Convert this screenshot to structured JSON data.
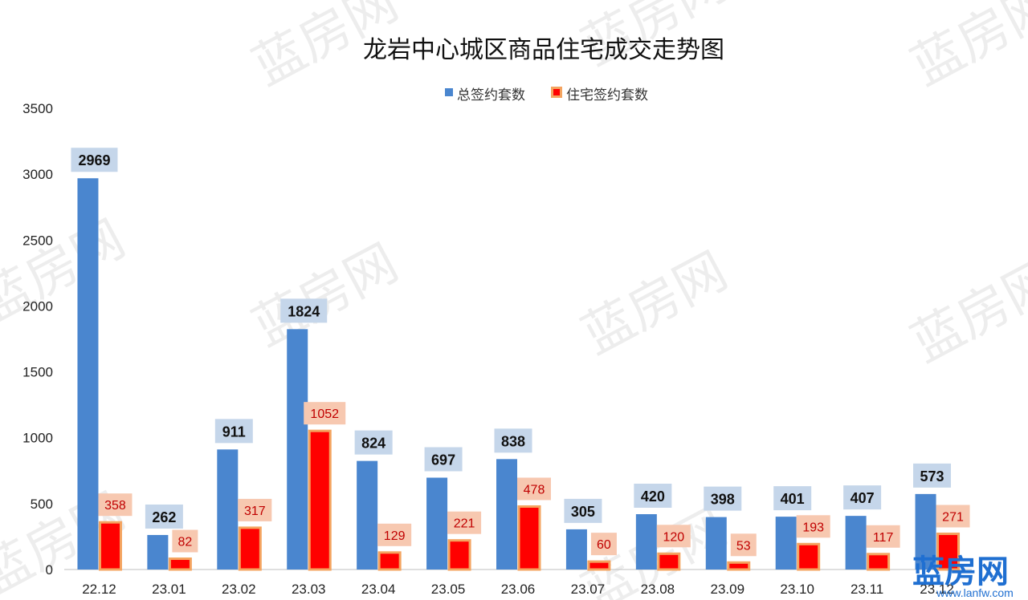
{
  "chart_data": {
    "type": "bar",
    "title": "龙岩中心城区商品住宅成交走势图",
    "categories": [
      "22.12",
      "23.01",
      "23.02",
      "23.03",
      "23.04",
      "23.05",
      "23.06",
      "23.07",
      "23.08",
      "23.09",
      "23.10",
      "23.11",
      "23.12"
    ],
    "series": [
      {
        "name": "总签约套数",
        "color": "#4a86cf",
        "label_bg": "#c5d6ea",
        "values": [
          2969,
          262,
          911,
          1824,
          824,
          697,
          838,
          305,
          420,
          398,
          401,
          407,
          573
        ]
      },
      {
        "name": "住宅签约套数",
        "color": "#ff0000",
        "border": "#f4a460",
        "label_bg": "#f7c8b0",
        "values": [
          358,
          82,
          317,
          1052,
          129,
          221,
          478,
          60,
          120,
          53,
          193,
          117,
          271
        ]
      }
    ],
    "ylim": [
      0,
      3500
    ],
    "yticks": [
      0,
      500,
      1000,
      1500,
      2000,
      2500,
      3000,
      3500
    ],
    "legend_position": "top",
    "grid": false
  },
  "watermark": {
    "text": "蓝房网"
  },
  "logo": {
    "main": "蓝房网",
    "sub": "www.lanfw.com"
  }
}
